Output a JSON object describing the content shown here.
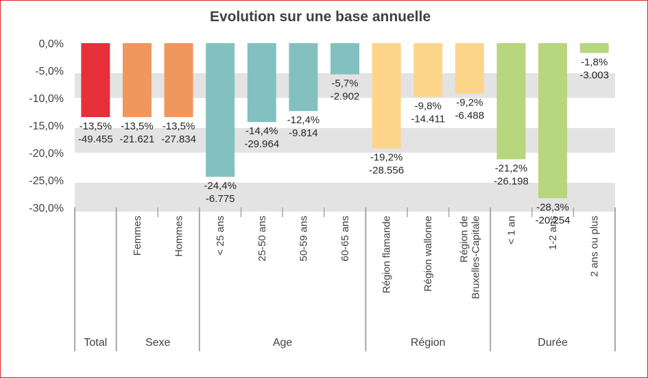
{
  "chart_data": {
    "type": "bar",
    "title": "Evolution sur une base annuelle",
    "ylim": [
      -30,
      0
    ],
    "y_ticks": [
      "0,0%",
      "-5,0%",
      "-10,0%",
      "-15,0%",
      "-20,0%",
      "-25,0%",
      "-30,0%"
    ],
    "grid": "alternating horizontal bands",
    "categories": [
      {
        "label": "",
        "group": "Total",
        "value": -13.5,
        "pct_label": "-13,5%",
        "count_label": "-49.455",
        "color": "#e8303a"
      },
      {
        "label": "Femmes",
        "group": "Sexe",
        "value": -13.5,
        "pct_label": "-13,5%",
        "count_label": "-21.621",
        "color": "#f0975e"
      },
      {
        "label": "Hommes",
        "group": "Sexe",
        "value": -13.5,
        "pct_label": "-13,5%",
        "count_label": "-27.834",
        "color": "#f0975e"
      },
      {
        "label": "< 25 ans",
        "group": "Age",
        "value": -24.4,
        "pct_label": "-24,4%",
        "count_label": "-6.775",
        "color": "#82c1bf"
      },
      {
        "label": "25-50 ans",
        "group": "Age",
        "value": -14.4,
        "pct_label": "-14,4%",
        "count_label": "-29.964",
        "color": "#82c1bf"
      },
      {
        "label": "50-59 ans",
        "group": "Age",
        "value": -12.4,
        "pct_label": "-12,4%",
        "count_label": "-9.814",
        "color": "#82c1bf"
      },
      {
        "label": "60-65 ans",
        "group": "Age",
        "value": -5.7,
        "pct_label": "-5,7%",
        "count_label": "-2.902",
        "color": "#82c1bf"
      },
      {
        "label": "Région flamande",
        "group": "Région",
        "value": -19.2,
        "pct_label": "-19,2%",
        "count_label": "-28.556",
        "color": "#fdd58a"
      },
      {
        "label": "Région wallonne",
        "group": "Région",
        "value": -9.8,
        "pct_label": "-9,8%",
        "count_label": "-14.411",
        "color": "#fdd58a"
      },
      {
        "label": "Région de Bruxelles-Capitale",
        "group": "Région",
        "value": -9.2,
        "pct_label": "-9,2%",
        "count_label": "-6.488",
        "color": "#fdd58a"
      },
      {
        "label": "< 1 an",
        "group": "Durée",
        "value": -21.2,
        "pct_label": "-21,2%",
        "count_label": "-26.198",
        "color": "#b7d67e"
      },
      {
        "label": "1-2 ans",
        "group": "Durée",
        "value": -28.3,
        "pct_label": "-28,3%",
        "count_label": "-20.254",
        "color": "#b7d67e"
      },
      {
        "label": "2 ans ou plus",
        "group": "Durée",
        "value": -1.8,
        "pct_label": "-1,8%",
        "count_label": "-3.003",
        "color": "#b7d67e"
      }
    ],
    "groups": [
      "Total",
      "Sexe",
      "Age",
      "Région",
      "Durée"
    ]
  }
}
